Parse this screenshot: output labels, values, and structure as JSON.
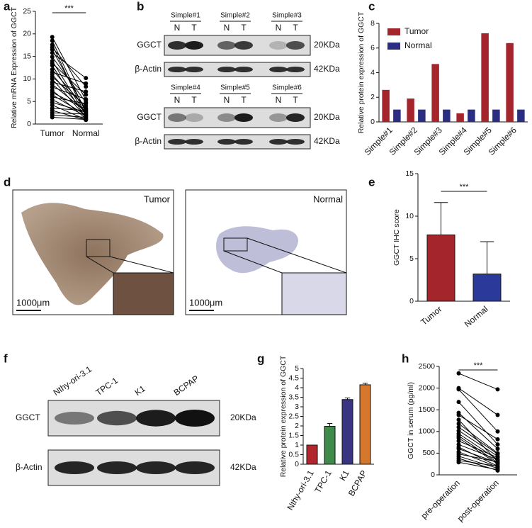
{
  "figure": {
    "panel_letters": [
      "a",
      "b",
      "c",
      "d",
      "e",
      "f",
      "g",
      "h"
    ],
    "blot_b": {
      "samples": [
        "Simple#1",
        "Simple#2",
        "Simple#3",
        "Simple#4",
        "Simple#5",
        "Simple#6"
      ],
      "lanes": [
        "N",
        "T"
      ],
      "rows": [
        "GGCT",
        "β-Actin"
      ],
      "sizes": [
        "20KDa",
        "42KDa"
      ]
    },
    "blot_f": {
      "lanes": [
        "Nthy-ori-3.1",
        "TPC-1",
        "K1",
        "BCPAP"
      ],
      "rows": [
        "GGCT",
        "β-Actin"
      ],
      "sizes": [
        "20KDa",
        "42KDa"
      ]
    },
    "ihc_d": {
      "labels": [
        "Tumor",
        "Normal"
      ],
      "scale_bar": "1000μm"
    }
  },
  "chart_data": [
    {
      "type": "paired",
      "ylabel": "Relative mRNA Expression of GGCT",
      "categories": [
        "Tumor",
        "Normal"
      ],
      "pairs": [
        [
          19.3,
          5.3
        ],
        [
          18.5,
          2.5
        ],
        [
          17.6,
          1.8
        ],
        [
          17,
          8.3
        ],
        [
          16.5,
          3
        ],
        [
          15.8,
          10.2
        ],
        [
          14.9,
          4.8
        ],
        [
          14,
          2
        ],
        [
          13.5,
          6.5
        ],
        [
          13,
          1.3
        ],
        [
          12.1,
          3.5
        ],
        [
          11.5,
          9
        ],
        [
          11,
          2.3
        ],
        [
          10.5,
          4
        ],
        [
          10,
          1.5
        ],
        [
          9.3,
          7.2
        ],
        [
          8.8,
          2.8
        ],
        [
          8.2,
          5.5
        ],
        [
          7.5,
          1.2
        ],
        [
          7,
          3.3
        ],
        [
          6.5,
          2
        ],
        [
          6,
          4.5
        ],
        [
          5.4,
          1.8
        ],
        [
          4.8,
          2.6
        ],
        [
          4.2,
          1
        ],
        [
          3.5,
          3
        ],
        [
          3,
          0.9
        ],
        [
          2.5,
          2.2
        ],
        [
          2,
          1.5
        ],
        [
          1.5,
          1
        ]
      ],
      "ylim": [
        0,
        25
      ],
      "yticks": [
        0,
        5,
        10,
        15,
        20,
        25
      ],
      "annotation": "***",
      "color": "#000000"
    },
    {
      "type": "bar",
      "ylabel": "Relative protein expression of GGCT",
      "categories": [
        "Simple#1",
        "Simple#2",
        "Simple#3",
        "Simple#4",
        "Simple#5",
        "Simple#6"
      ],
      "series": [
        {
          "name": "Tumor",
          "color": "#a4262c",
          "values": [
            2.6,
            1.9,
            4.7,
            0.7,
            7.2,
            6.4
          ]
        },
        {
          "name": "Normal",
          "color": "#2b2e80",
          "values": [
            1,
            1,
            1,
            1,
            1,
            1
          ]
        }
      ],
      "ylim": [
        0,
        8
      ],
      "yticks": [
        0,
        2,
        4,
        6,
        8
      ],
      "legend": "upper-left"
    },
    {
      "type": "bar",
      "ylabel": "GGCT IHC score",
      "categories": [
        "Tumor",
        "Normal"
      ],
      "values": [
        7.8,
        3.2
      ],
      "errors": [
        3.8,
        3.8
      ],
      "colors": [
        "#a4262c",
        "#2b3a9a"
      ],
      "ylim": [
        0,
        15
      ],
      "yticks": [
        0,
        5,
        10,
        15
      ],
      "annotation": "***"
    },
    {
      "type": "bar",
      "ylabel": "Relative protein expression of GGCT",
      "categories": [
        "Nthy-ori-3.1",
        "TPC-1",
        "K1",
        "BCPAP"
      ],
      "values": [
        1,
        1.98,
        3.38,
        4.15
      ],
      "errors": [
        0,
        0.15,
        0.08,
        0.08
      ],
      "colors": [
        "#b0282d",
        "#3f8b4b",
        "#3a3580",
        "#d5782c"
      ],
      "ylim": [
        0,
        5
      ],
      "yticks": [
        0,
        0.5,
        1,
        1.5,
        2,
        2.5,
        3,
        3.5,
        4,
        4.5,
        5
      ]
    },
    {
      "type": "paired",
      "ylabel": "GGCT in serum (pg/ml)",
      "categories": [
        "pre-operation",
        "post-operation"
      ],
      "pairs": [
        [
          2340,
          1970
        ],
        [
          2000,
          1380
        ],
        [
          1970,
          1000
        ],
        [
          1680,
          700
        ],
        [
          1430,
          600
        ],
        [
          1380,
          820
        ],
        [
          1270,
          300
        ],
        [
          1180,
          500
        ],
        [
          1100,
          480
        ],
        [
          1020,
          430
        ],
        [
          950,
          350
        ],
        [
          900,
          280
        ],
        [
          850,
          250
        ],
        [
          780,
          400
        ],
        [
          700,
          350
        ],
        [
          640,
          200
        ],
        [
          600,
          280
        ],
        [
          530,
          180
        ],
        [
          480,
          300
        ],
        [
          430,
          150
        ],
        [
          380,
          100
        ],
        [
          330,
          200
        ],
        [
          290,
          120
        ]
      ],
      "ylim": [
        0,
        2500
      ],
      "yticks": [
        0,
        500,
        1000,
        1500,
        2000,
        2500
      ],
      "annotation": "***",
      "color": "#000000"
    }
  ]
}
